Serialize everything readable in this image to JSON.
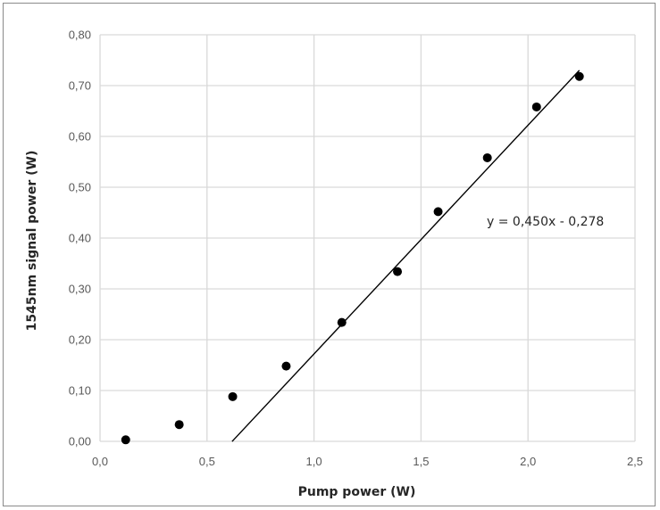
{
  "chart_data": {
    "type": "scatter",
    "title": "",
    "xlabel": "Pump power (W)",
    "ylabel": "1545nm signal power (W)",
    "xlim": [
      0,
      2.5
    ],
    "ylim": [
      0,
      0.8
    ],
    "x_ticks": [
      "0,0",
      "0,5",
      "1,0",
      "1,5",
      "2,0",
      "2,5"
    ],
    "y_ticks": [
      "0,00",
      "0,10",
      "0,20",
      "0,30",
      "0,40",
      "0,50",
      "0,60",
      "0,70",
      "0,80"
    ],
    "grid": true,
    "series": [
      {
        "x": [
          0.12,
          0.37,
          0.62,
          0.87,
          1.13,
          1.39,
          1.58,
          1.81,
          2.04,
          2.24
        ],
        "y": [
          0.003,
          0.033,
          0.088,
          0.148,
          0.234,
          0.334,
          0.452,
          0.558,
          0.658,
          0.718
        ]
      }
    ],
    "trendline": {
      "slope": 0.45,
      "intercept": -0.278,
      "x_range": [
        0.617,
        2.24
      ],
      "label": "y = 0,450x - 0,278"
    }
  }
}
